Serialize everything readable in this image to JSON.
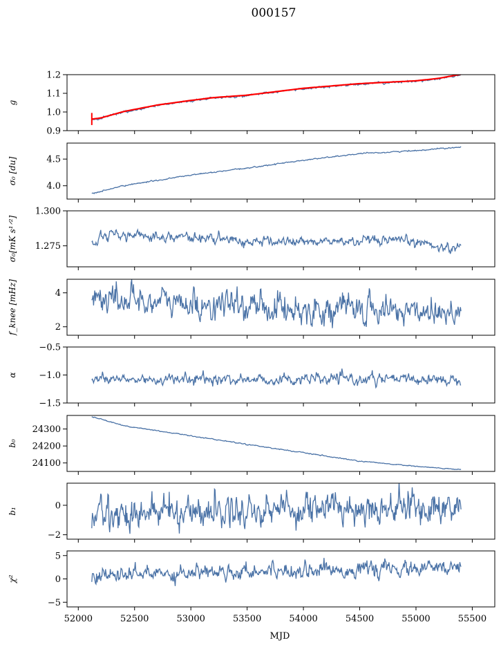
{
  "title": "000157",
  "xlabel": "MJD",
  "chart_data": {
    "type": "line",
    "x_ticks": [
      52000,
      52500,
      53000,
      53500,
      54000,
      54500,
      55000,
      55500
    ],
    "xlim": [
      51900,
      55700
    ],
    "x_range": [
      52120,
      55400
    ],
    "line_color": "#4a72a6",
    "fit_color": "#ff0000",
    "panels": [
      {
        "id": "g",
        "ylabel": "g",
        "ylim": [
          0.9,
          1.2
        ],
        "yticks": [
          0.9,
          1.0,
          1.1,
          1.2
        ],
        "tick_labels": [
          "0.9",
          "1.0",
          "1.1",
          "1.2"
        ],
        "anchors_x": [
          52120,
          52200,
          52400,
          52700,
          53000,
          53200,
          53500,
          54000,
          54500,
          55000,
          55200,
          55400
        ],
        "anchors_y": [
          0.96,
          0.966,
          1.0,
          1.035,
          1.06,
          1.075,
          1.088,
          1.125,
          1.15,
          1.165,
          1.178,
          1.2
        ],
        "noise": 0.003,
        "overlay": "fit"
      },
      {
        "id": "sigma0",
        "ylabel": "σ₀ [du]",
        "ylim": [
          3.75,
          4.8
        ],
        "yticks": [
          4.0,
          4.5
        ],
        "tick_labels": [
          "4.0",
          "4.5"
        ],
        "anchors_x": [
          52120,
          52400,
          53000,
          53500,
          54000,
          54500,
          55000,
          55400
        ],
        "anchors_y": [
          3.85,
          4.0,
          4.2,
          4.33,
          4.48,
          4.6,
          4.66,
          4.73
        ],
        "noise": 0.006
      },
      {
        "id": "sigma0_mks",
        "ylabel": "σ₀[mK s¹ᐟ²]",
        "ylim": [
          1.26,
          1.3
        ],
        "yticks": [
          1.275,
          1.3
        ],
        "tick_labels": [
          "1.275",
          "1.300"
        ],
        "anchors_x": [
          52120,
          52200,
          52300,
          52500,
          52800,
          53200,
          53500,
          54000,
          54500,
          55000,
          55300,
          55400
        ],
        "anchors_y": [
          1.276,
          1.283,
          1.283,
          1.282,
          1.282,
          1.28,
          1.278,
          1.278,
          1.278,
          1.278,
          1.273,
          1.276
        ],
        "noise": 0.0018
      },
      {
        "id": "fknee",
        "ylabel": "f_knee [mHz]",
        "ylim": [
          1.5,
          4.8
        ],
        "yticks": [
          2,
          4
        ],
        "tick_labels": [
          "2",
          "4"
        ],
        "anchors_x": [
          52120,
          52500,
          53000,
          53500,
          54000,
          54500,
          55000,
          55400
        ],
        "anchors_y": [
          3.7,
          3.6,
          3.3,
          3.2,
          3.05,
          3.0,
          2.95,
          3.0
        ],
        "noise": 0.45
      },
      {
        "id": "alpha",
        "ylabel": "α",
        "ylim": [
          -1.5,
          -0.5
        ],
        "yticks": [
          -1.5,
          -1.0,
          -0.5
        ],
        "tick_labels": [
          "−1.5",
          "−1.0",
          "−0.5"
        ],
        "anchors_x": [
          52120,
          55400
        ],
        "anchors_y": [
          -1.08,
          -1.08
        ],
        "noise": 0.05
      },
      {
        "id": "b0",
        "ylabel": "b₀",
        "ylim": [
          24050,
          24380
        ],
        "yticks": [
          24100,
          24200,
          24300
        ],
        "tick_labels": [
          "24100",
          "24200",
          "24300"
        ],
        "anchors_x": [
          52120,
          52400,
          53000,
          53500,
          54000,
          54500,
          55000,
          55400
        ],
        "anchors_y": [
          24375,
          24320,
          24260,
          24210,
          24160,
          24110,
          24080,
          24060
        ],
        "noise": 1.5
      },
      {
        "id": "b1",
        "ylabel": "b₁",
        "ylim": [
          -2.3,
          1.5
        ],
        "yticks": [
          -2,
          0
        ],
        "tick_labels": [
          "−2",
          "0"
        ],
        "anchors_x": [
          52120,
          53000,
          54000,
          55000,
          55400
        ],
        "anchors_y": [
          -0.6,
          -0.4,
          -0.2,
          -0.1,
          -0.2
        ],
        "noise": 0.6
      },
      {
        "id": "chi2",
        "ylabel": "χ²",
        "ylim": [
          -6,
          6
        ],
        "yticks": [
          -5,
          0,
          5
        ],
        "tick_labels": [
          "−5",
          "0",
          "5"
        ],
        "anchors_x": [
          52120,
          53000,
          54000,
          55000,
          55400
        ],
        "anchors_y": [
          0.5,
          1.5,
          2.0,
          2.0,
          2.5
        ],
        "noise": 0.9
      }
    ]
  }
}
